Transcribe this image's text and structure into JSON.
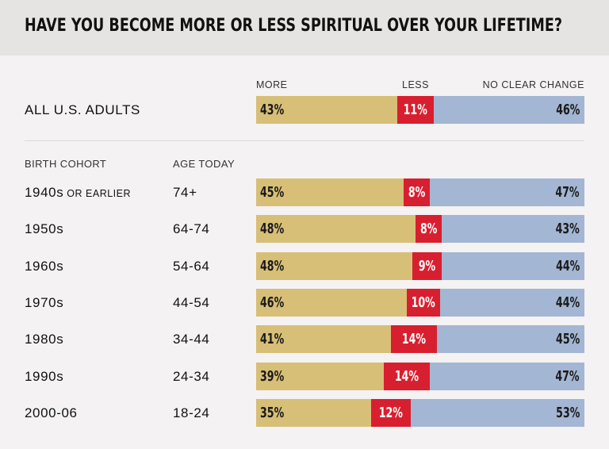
{
  "title": "HAVE YOU BECOME MORE OR LESS SPIRITUAL OVER YOUR LIFETIME?",
  "legend": {
    "more": "MORE",
    "less": "LESS",
    "no_change": "NO CLEAR CHANGE"
  },
  "headers": {
    "cohort": "BIRTH COHORT",
    "age": "AGE TODAY"
  },
  "colors": {
    "more": "#d8bf77",
    "less": "#d81f2f",
    "no_change": "#a3b6d3"
  },
  "chart_data": {
    "type": "bar",
    "stacked": true,
    "orientation": "horizontal",
    "title": "HAVE YOU BECOME MORE OR LESS SPIRITUAL OVER YOUR LIFETIME?",
    "series_names": [
      "MORE",
      "LESS",
      "NO CLEAR CHANGE"
    ],
    "total": {
      "label": "ALL U.S. ADULTS",
      "more": 43,
      "less": 11,
      "no_change": 46,
      "more_label": "43%",
      "less_label": "11%",
      "no_change_label": "46%"
    },
    "rows": [
      {
        "cohort": "1940s",
        "cohort_suffix": "OR EARLIER",
        "age": "74+",
        "more": 45,
        "less": 8,
        "no_change": 47,
        "more_label": "45%",
        "less_label": "8%",
        "no_change_label": "47%"
      },
      {
        "cohort": "1950s",
        "cohort_suffix": "",
        "age": "64-74",
        "more": 48,
        "less": 8,
        "no_change": 43,
        "more_label": "48%",
        "less_label": "8%",
        "no_change_label": "43%"
      },
      {
        "cohort": "1960s",
        "cohort_suffix": "",
        "age": "54-64",
        "more": 48,
        "less": 9,
        "no_change": 44,
        "more_label": "48%",
        "less_label": "9%",
        "no_change_label": "44%"
      },
      {
        "cohort": "1970s",
        "cohort_suffix": "",
        "age": "44-54",
        "more": 46,
        "less": 10,
        "no_change": 44,
        "more_label": "46%",
        "less_label": "10%",
        "no_change_label": "44%"
      },
      {
        "cohort": "1980s",
        "cohort_suffix": "",
        "age": "34-44",
        "more": 41,
        "less": 14,
        "no_change": 45,
        "more_label": "41%",
        "less_label": "14%",
        "no_change_label": "45%"
      },
      {
        "cohort": "1990s",
        "cohort_suffix": "",
        "age": "24-34",
        "more": 39,
        "less": 14,
        "no_change": 47,
        "more_label": "39%",
        "less_label": "14%",
        "no_change_label": "47%"
      },
      {
        "cohort": "2000-06",
        "cohort_suffix": "",
        "age": "18-24",
        "more": 35,
        "less": 12,
        "no_change": 53,
        "more_label": "35%",
        "less_label": "12%",
        "no_change_label": "53%"
      }
    ]
  }
}
